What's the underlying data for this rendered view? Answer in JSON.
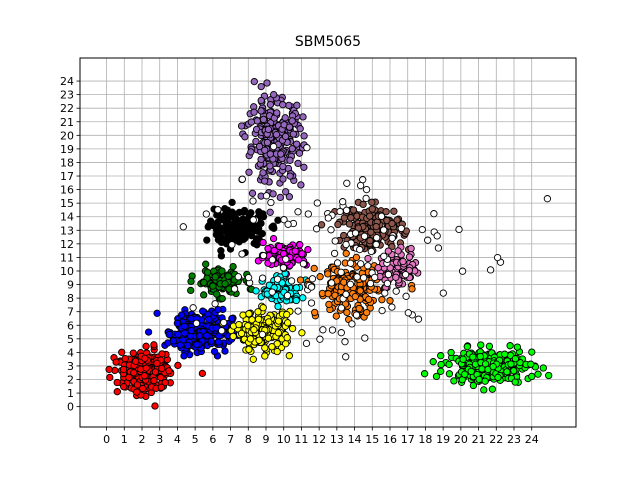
{
  "chart_data": {
    "type": "scatter",
    "title": "SBM5065",
    "xlabel": "",
    "ylabel": "",
    "xlim": [
      -1.5,
      26.5
    ],
    "ylim": [
      -1.5,
      25.7
    ],
    "xticks": [
      0,
      1,
      2,
      3,
      4,
      5,
      6,
      7,
      8,
      9,
      10,
      11,
      12,
      13,
      14,
      15,
      16,
      17,
      18,
      19,
      20,
      21,
      22,
      23,
      24
    ],
    "yticks": [
      0,
      1,
      2,
      3,
      4,
      5,
      6,
      7,
      8,
      9,
      10,
      11,
      12,
      13,
      14,
      15,
      16,
      17,
      18,
      19,
      20,
      21,
      22,
      23,
      24
    ],
    "grid": true,
    "marker": "circle",
    "marker_edge_color": "#000000",
    "clusters": [
      {
        "color": "#ff0000",
        "center": [
          2.2,
          2.6
        ],
        "spread": [
          1.3,
          1.2
        ],
        "count": 220
      },
      {
        "color": "#0000ff",
        "center": [
          5.3,
          5.6
        ],
        "spread": [
          1.5,
          1.3
        ],
        "count": 230
      },
      {
        "color": "#008000",
        "center": [
          6.4,
          9.2
        ],
        "spread": [
          1.1,
          0.8
        ],
        "count": 110
      },
      {
        "color": "#000000",
        "center": [
          7.4,
          13.1
        ],
        "spread": [
          1.3,
          1.1
        ],
        "count": 180
      },
      {
        "color": "#9467bd",
        "center": [
          9.5,
          19.5
        ],
        "spread": [
          1.3,
          2.6
        ],
        "count": 260
      },
      {
        "color": "#ff00ff",
        "center": [
          10.1,
          11.2
        ],
        "spread": [
          1.0,
          0.7
        ],
        "count": 110
      },
      {
        "color": "#00ffff",
        "center": [
          9.9,
          8.5
        ],
        "spread": [
          0.9,
          0.8
        ],
        "count": 90
      },
      {
        "color": "#ffff00",
        "center": [
          8.9,
          5.5
        ],
        "spread": [
          1.3,
          1.2
        ],
        "count": 170
      },
      {
        "color": "#ff7f0e",
        "center": [
          13.8,
          8.6
        ],
        "spread": [
          1.6,
          1.6
        ],
        "count": 190
      },
      {
        "color": "#8c564b",
        "center": [
          14.9,
          13.2
        ],
        "spread": [
          1.5,
          1.3
        ],
        "count": 170
      },
      {
        "color": "#e377c2",
        "center": [
          16.4,
          10.2
        ],
        "spread": [
          0.9,
          1.0
        ],
        "count": 90
      },
      {
        "color": "#00ff00",
        "center": [
          21.7,
          3.0
        ],
        "spread": [
          2.0,
          1.0
        ],
        "count": 260
      },
      {
        "color": "#ffffff",
        "center": [
          12.0,
          11.0
        ],
        "spread": [
          6.5,
          6.0
        ],
        "count": 130
      }
    ]
  }
}
